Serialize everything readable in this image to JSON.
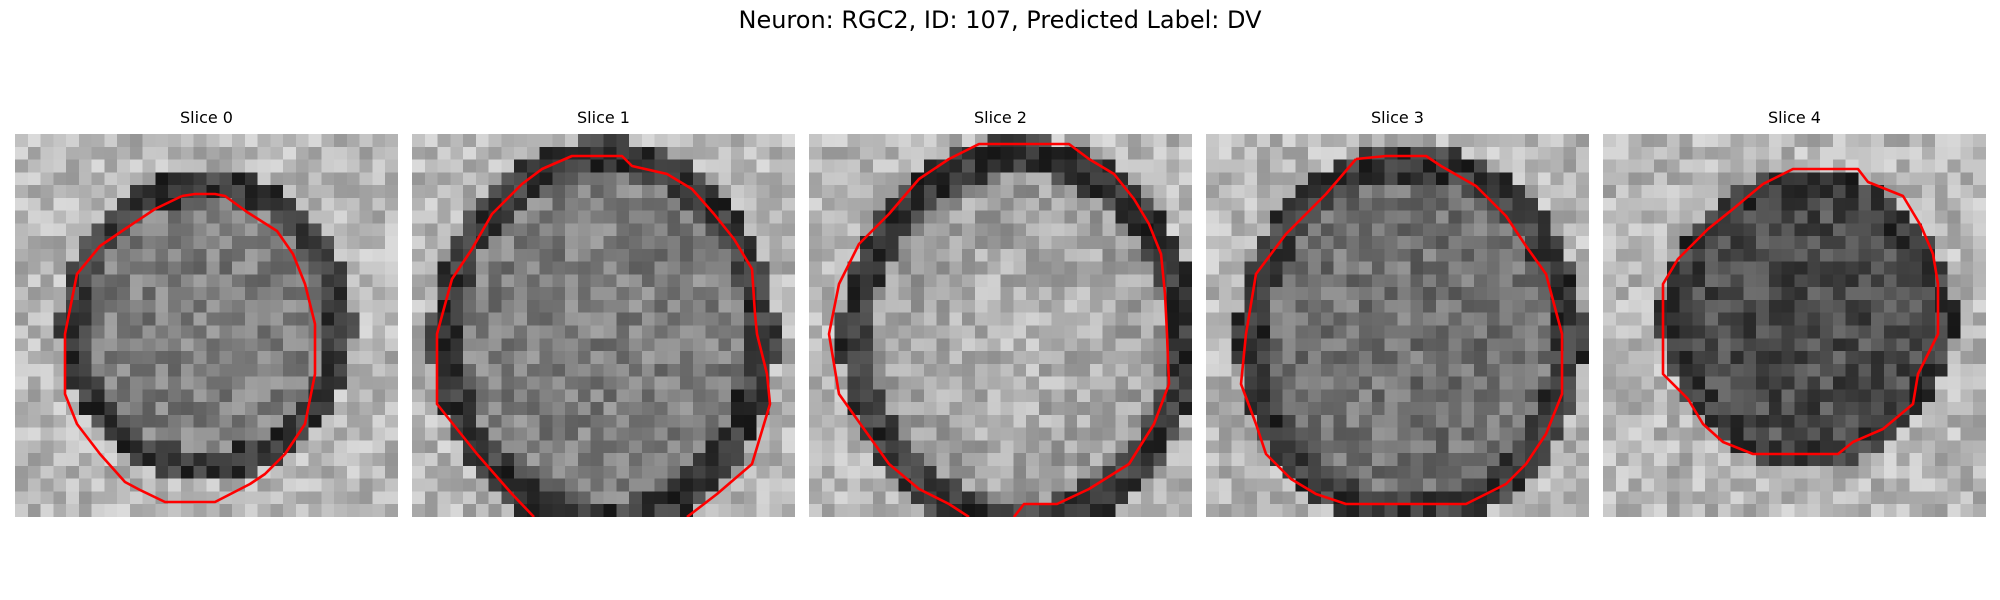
{
  "figure": {
    "title": "Neuron: RGC2, ID: 107, Predicted Label: DV"
  },
  "colors": {
    "contour": "#ff0000",
    "colormap": "gray"
  },
  "panels": [
    {
      "title": "Slice 0"
    },
    {
      "title": "Slice 1"
    },
    {
      "title": "Slice 2"
    },
    {
      "title": "Slice 3"
    },
    {
      "title": "Slice 4"
    }
  ]
}
